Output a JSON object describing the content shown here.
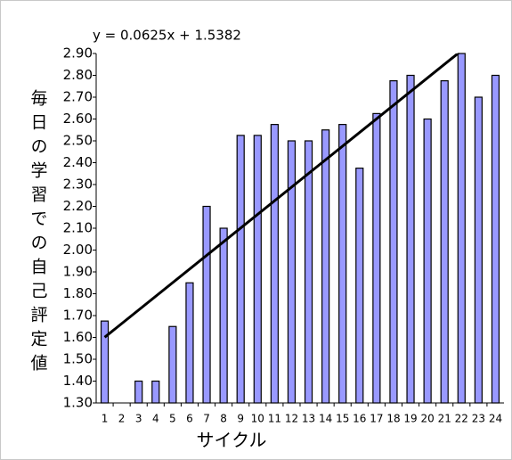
{
  "chart_data": {
    "type": "bar",
    "categories": [
      "1",
      "2",
      "3",
      "4",
      "5",
      "6",
      "7",
      "8",
      "9",
      "10",
      "11",
      "12",
      "13",
      "14",
      "15",
      "16",
      "17",
      "18",
      "19",
      "20",
      "21",
      "22",
      "23",
      "24"
    ],
    "values": [
      1.675,
      null,
      1.4,
      1.4,
      1.65,
      1.85,
      2.2,
      2.1,
      2.525,
      2.525,
      2.575,
      2.5,
      2.5,
      2.55,
      2.575,
      2.375,
      2.625,
      2.775,
      2.8,
      2.6,
      2.775,
      2.9,
      2.7,
      2.8
    ],
    "color": "#9999ff",
    "ylim": [
      1.3,
      2.9
    ],
    "yticks": [
      {
        "value": 1.3,
        "label": "1.30"
      },
      {
        "value": 1.4,
        "label": "1.40"
      },
      {
        "value": 1.5,
        "label": "1.50"
      },
      {
        "value": 1.6,
        "label": "1.60"
      },
      {
        "value": 1.7,
        "label": "1.70"
      },
      {
        "value": 1.8,
        "label": "1.80"
      },
      {
        "value": 1.9,
        "label": "1.90"
      },
      {
        "value": 2.0,
        "label": "2.00"
      },
      {
        "value": 2.1,
        "label": "2.10"
      },
      {
        "value": 2.2,
        "label": "2.20"
      },
      {
        "value": 2.3,
        "label": "2.30"
      },
      {
        "value": 2.4,
        "label": "2.40"
      },
      {
        "value": 2.5,
        "label": "2.50"
      },
      {
        "value": 2.6,
        "label": "2.60"
      },
      {
        "value": 2.7,
        "label": "2.70"
      },
      {
        "value": 2.8,
        "label": "2.80"
      },
      {
        "value": 2.9,
        "label": "2.90"
      }
    ],
    "ylabel": "毎日の学習での自己評定値",
    "xlabel": "サイクル",
    "trendline": {
      "label": "y = 0.0625x + 1.5382",
      "slope": 0.0625,
      "intercept": 1.5382
    },
    "grid": false
  }
}
